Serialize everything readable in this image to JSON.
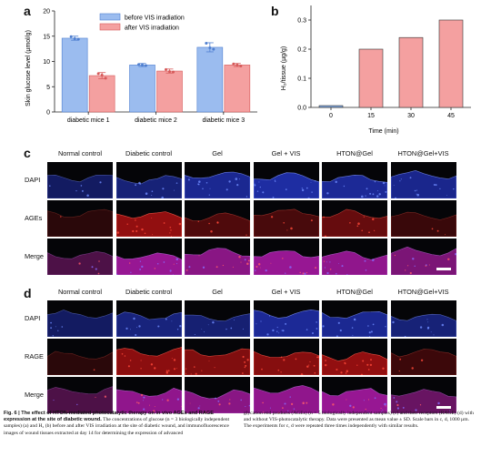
{
  "panels": {
    "a": "a",
    "b": "b",
    "c": "c",
    "d": "d"
  },
  "chart_data": [
    {
      "type": "bar",
      "panel": "a",
      "ylabel": "Skin glucose level (µmol/g)",
      "categories": [
        "diabetic mice 1",
        "diabetic mice 2",
        "diabetic mice 3"
      ],
      "ylim": [
        0,
        20
      ],
      "yticks": [
        "0",
        "5",
        "10",
        "15",
        "20"
      ],
      "series": [
        {
          "name": "before VIS irradiation",
          "color": "#9bbcef",
          "edge": "#4f7fd0",
          "values": [
            14.6,
            9.3,
            12.8
          ],
          "errors": [
            0.4,
            0.3,
            0.9
          ],
          "points": [
            [
              14.9,
              14.5,
              14.4
            ],
            [
              9.4,
              9.3,
              9.2
            ],
            [
              13.6,
              12.7,
              12.4
            ]
          ]
        },
        {
          "name": "after VIS irradiation",
          "color": "#f4a0a0",
          "edge": "#d65a5a",
          "values": [
            7.2,
            8.1,
            9.3
          ],
          "errors": [
            0.6,
            0.4,
            0.3
          ],
          "points": [
            [
              7.6,
              7.3,
              6.7
            ],
            [
              8.4,
              8.0,
              7.9
            ],
            [
              9.5,
              9.3,
              9.1
            ]
          ]
        }
      ],
      "legend": "top-right",
      "grid": false
    },
    {
      "type": "bar",
      "panel": "b",
      "ylabel": "H₂/tissue (µg/g)",
      "xlabel": "Time (min)",
      "categories": [
        "0",
        "15",
        "30",
        "45"
      ],
      "values": [
        0.005,
        0.2,
        0.24,
        0.3
      ],
      "colors": [
        "#7fa8e0",
        "#f4a0a0",
        "#f4a0a0",
        "#f4a0a0"
      ],
      "ylim": [
        0,
        0.35
      ],
      "yticks": [
        "0.0",
        "0.1",
        "0.2",
        "0.3"
      ],
      "grid": false
    }
  ],
  "panel_c": {
    "columns": [
      "Normal control",
      "Diabetic control",
      "Gel",
      "Gel + VIS",
      "HTON@Gel",
      "HTON@Gel+VIS"
    ],
    "rows": [
      "DAPI",
      "AGEs",
      "Merge"
    ],
    "intensity": {
      "DAPI": [
        0.35,
        0.55,
        0.8,
        0.95,
        0.85,
        0.75
      ],
      "AGEs": [
        0.05,
        0.9,
        0.35,
        0.3,
        0.55,
        0.18
      ],
      "Merge": [
        0.35,
        0.95,
        0.85,
        0.95,
        0.9,
        0.75
      ]
    }
  },
  "panel_d": {
    "columns": [
      "Normal control",
      "Diabetic control",
      "Gel",
      "Gel + VIS",
      "HTON@Gel",
      "HTON@Gel+VIS"
    ],
    "rows": [
      "DAPI",
      "RAGE",
      "Merge"
    ],
    "intensity": {
      "DAPI": [
        0.35,
        0.6,
        0.5,
        0.85,
        0.8,
        0.55
      ],
      "RAGE": [
        0.05,
        0.85,
        0.75,
        0.8,
        0.9,
        0.2
      ],
      "Merge": [
        0.35,
        0.9,
        0.85,
        0.9,
        0.95,
        0.6
      ]
    }
  },
  "caption": {
    "title": "Fig. 6 | The effect of HTON-mediated photocatalytic therapy on in vivo AGEs and RAGE expression at the site of diabetic wound.",
    "left": "The concentrations of glucose (n = 3 biologically independent samples) (a) and H₂ (b) before and after VIS irradiation at the site of diabetic wound, and immunofluorescence images of wound tissues extracted at day 14 for determining the expression of advanced",
    "right": "glycation end products (AGEs) (n = 5 biologically independent samples) (c) and their receptors (RAGE) (d) with and without VIS-photocatalytic therapy. Data were presented as mean value ± SD. Scale bars in c, d, 1000 µm. The experiments for c, d were repeated three times independently with similar results."
  }
}
